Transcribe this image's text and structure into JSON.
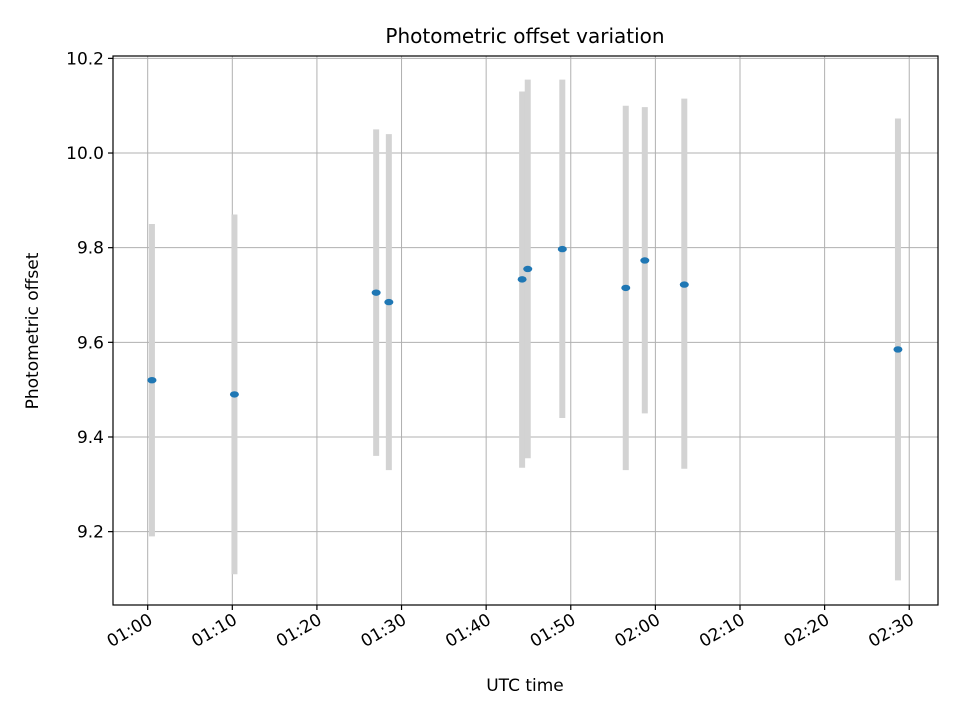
{
  "chart_data": {
    "type": "scatter",
    "title": "Photometric offset variation",
    "xlabel": "UTC time",
    "ylabel": "Photometric offset",
    "x_range_minutes": [
      55.9,
      153.4
    ],
    "ylim": [
      9.045,
      10.205
    ],
    "grid": true,
    "x_ticks": [
      "01:00",
      "01:10",
      "01:20",
      "01:30",
      "01:40",
      "01:50",
      "02:00",
      "02:10",
      "02:20",
      "02:30"
    ],
    "y_ticks": [
      "9.2",
      "9.4",
      "9.6",
      "9.8",
      "10.0",
      "10.2"
    ],
    "colors": {
      "point": "#1f77b4",
      "errorbar": "#d3d3d3"
    },
    "points": [
      {
        "time": "01:00:30",
        "y": 9.52,
        "y_low": 9.19,
        "y_high": 9.85
      },
      {
        "time": "01:10:15",
        "y": 9.49,
        "y_low": 9.11,
        "y_high": 9.87
      },
      {
        "time": "01:27:00",
        "y": 9.705,
        "y_low": 9.36,
        "y_high": 10.05
      },
      {
        "time": "01:28:30",
        "y": 9.685,
        "y_low": 9.33,
        "y_high": 10.04
      },
      {
        "time": "01:44:15",
        "y": 9.733,
        "y_low": 9.335,
        "y_high": 10.13
      },
      {
        "time": "01:44:55",
        "y": 9.755,
        "y_low": 9.355,
        "y_high": 10.155
      },
      {
        "time": "01:49:00",
        "y": 9.797,
        "y_low": 9.44,
        "y_high": 10.155
      },
      {
        "time": "01:56:30",
        "y": 9.715,
        "y_low": 9.33,
        "y_high": 10.1
      },
      {
        "time": "01:58:45",
        "y": 9.773,
        "y_low": 9.45,
        "y_high": 10.097
      },
      {
        "time": "02:03:25",
        "y": 9.722,
        "y_low": 9.333,
        "y_high": 10.115
      },
      {
        "time": "02:28:40",
        "y": 9.585,
        "y_low": 9.097,
        "y_high": 10.073
      }
    ]
  }
}
